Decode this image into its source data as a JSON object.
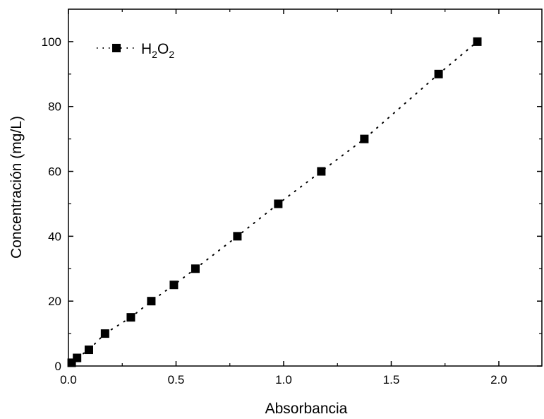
{
  "chart_data": {
    "type": "scatter",
    "xlabel": "Absorbancia",
    "ylabel": "Concentración (mg/L)",
    "xlim": [
      0,
      2.2
    ],
    "ylim": [
      0,
      110
    ],
    "x_ticks": [
      "0.0",
      "0.5",
      "1.0",
      "1.5",
      "2.0"
    ],
    "y_ticks": [
      "0",
      "20",
      "40",
      "60",
      "80",
      "100"
    ],
    "grid": false,
    "legend_position": "top-left",
    "series": [
      {
        "legend_main_1": "H",
        "legend_sub_1": "2",
        "legend_main_2": "O",
        "legend_sub_2": "2",
        "marker": "filled-square",
        "line_style": "dotted",
        "color": "#000000",
        "points": [
          {
            "x": 0.015,
            "y": 1
          },
          {
            "x": 0.04,
            "y": 2.5
          },
          {
            "x": 0.095,
            "y": 5
          },
          {
            "x": 0.17,
            "y": 10
          },
          {
            "x": 0.29,
            "y": 15
          },
          {
            "x": 0.385,
            "y": 20
          },
          {
            "x": 0.49,
            "y": 25
          },
          {
            "x": 0.59,
            "y": 30
          },
          {
            "x": 0.785,
            "y": 40
          },
          {
            "x": 0.975,
            "y": 50
          },
          {
            "x": 1.175,
            "y": 60
          },
          {
            "x": 1.375,
            "y": 70
          },
          {
            "x": 1.72,
            "y": 90
          },
          {
            "x": 1.9,
            "y": 100
          }
        ]
      }
    ]
  }
}
